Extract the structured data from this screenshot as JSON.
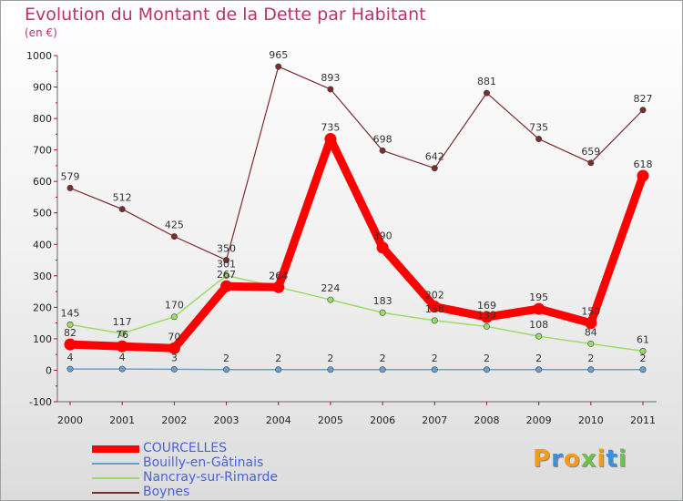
{
  "chart_data": {
    "type": "line",
    "title": "Evolution du Montant de la Dette par Habitant",
    "subtitle": "(en €)",
    "x": [
      "2000",
      "2001",
      "2002",
      "2003",
      "2004",
      "2005",
      "2006",
      "2007",
      "2008",
      "2009",
      "2010",
      "2011"
    ],
    "ylim": [
      -100,
      1000
    ],
    "yticks": [
      -100,
      0,
      100,
      200,
      300,
      400,
      500,
      600,
      700,
      800,
      900,
      1000
    ],
    "grid": false,
    "legend_position": "bottom-left",
    "series": [
      {
        "name": "COURCELLES",
        "color": "#ff0000",
        "values": [
          82,
          76,
          70,
          267,
          264,
          735,
          390,
          202,
          169,
          195,
          150,
          618
        ],
        "labels": [
          "82",
          "76",
          "70",
          "267",
          "264",
          "735",
          "390",
          "202",
          "169",
          "195",
          "150",
          "618"
        ]
      },
      {
        "name": "Bouilly-en-Gâtinais",
        "color": "#6b9fcf",
        "values": [
          4,
          4,
          3,
          2,
          2,
          2,
          2,
          2,
          2,
          2,
          2,
          2
        ],
        "labels": [
          "4",
          "4",
          "3",
          "2",
          "2",
          "2",
          "2",
          "2",
          "2",
          "2",
          "2",
          "2"
        ]
      },
      {
        "name": "Nancray-sur-Rimarde",
        "color": "#99dd66",
        "values": [
          145,
          117,
          170,
          301,
          264,
          224,
          183,
          158,
          139,
          108,
          84,
          61
        ],
        "labels": [
          "145",
          "117",
          "170",
          "301",
          "264",
          "224",
          "183",
          "158",
          "139",
          "108",
          "84",
          "61"
        ]
      },
      {
        "name": "Boynes",
        "color": "#7a2d2d",
        "values": [
          579,
          512,
          425,
          350,
          965,
          893,
          698,
          642,
          881,
          735,
          659,
          827
        ],
        "labels": [
          "579",
          "512",
          "425",
          "350",
          "965",
          "893",
          "698",
          "642",
          "881",
          "735",
          "659",
          "827"
        ]
      }
    ]
  },
  "legend": {
    "items": [
      "COURCELLES",
      "Bouilly-en-Gâtinais",
      "Nancray-sur-Rimarde",
      "Boynes"
    ]
  },
  "brand": {
    "logo_text": "Proxiti",
    "letter_colors": [
      "#f59a1b",
      "#3c8fd8",
      "#f59a1b",
      "#6cc24a",
      "#f59a1b",
      "#3c8fd8",
      "#6cc24a"
    ]
  }
}
